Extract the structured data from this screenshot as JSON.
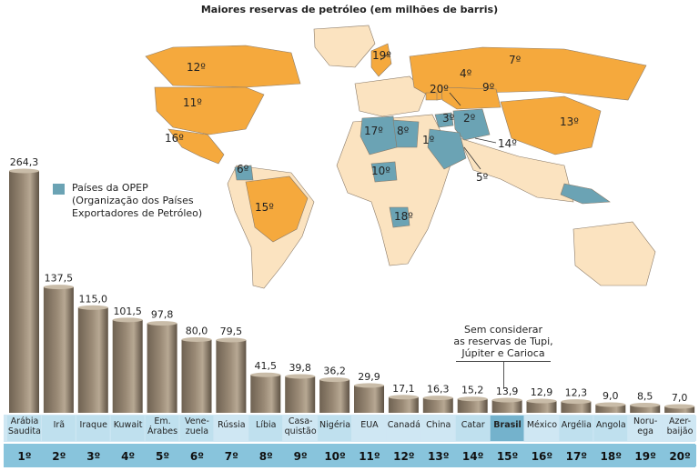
{
  "title": "Maiores reservas de petróleo (em milhões de barris)",
  "legend": {
    "label": "Países da OPEP (Organização dos Países Exportadores de Petróleo)",
    "color": "#6ba3b4"
  },
  "note": {
    "line1": "Sem considerar",
    "line2": "as reservas de Tupi,",
    "line3": "Júpiter e Carioca"
  },
  "colors": {
    "bar": "#9a8a76",
    "opep_label_bg": "#bfe0ee",
    "other_label_bg": "#cfe7f3",
    "rank_bg": "#88c4dc",
    "highlight_label_bg": "#74b2cc",
    "map_other": "#fbe3c0",
    "map_top20": "#f5a93d",
    "map_opep": "#6ba3b4"
  },
  "map_labels": [
    "12º",
    "11º",
    "16º",
    "6º",
    "15º",
    "19º",
    "7º",
    "4º",
    "20º",
    "9º",
    "3º",
    "2º",
    "13º",
    "17º",
    "8º",
    "1º",
    "14º",
    "5º",
    "10º",
    "18º"
  ],
  "chart_data": {
    "type": "bar",
    "title": "Maiores reservas de petróleo (em milhões de barris)",
    "categories": [
      [
        "Arábia",
        "Saudita"
      ],
      [
        "Irã"
      ],
      [
        "Iraque"
      ],
      [
        "Kuwait"
      ],
      [
        "Em.",
        "Árabes"
      ],
      [
        "Vene-",
        "zuela"
      ],
      [
        "Rússia"
      ],
      [
        "Líbia"
      ],
      [
        "Casa-",
        "quistão"
      ],
      [
        "Nigéria"
      ],
      [
        "EUA"
      ],
      [
        "Canadá"
      ],
      [
        "China"
      ],
      [
        "Catar"
      ],
      [
        "Brasil"
      ],
      [
        "México"
      ],
      [
        "Argélia"
      ],
      [
        "Angola"
      ],
      [
        "Noru-",
        "ega"
      ],
      [
        "Azer-",
        "baijão"
      ]
    ],
    "values": [
      264.3,
      137.5,
      115.0,
      101.5,
      97.8,
      80.0,
      79.5,
      41.5,
      39.8,
      36.2,
      29.9,
      17.1,
      16.3,
      15.2,
      13.9,
      12.9,
      12.3,
      9.0,
      8.5,
      7.0
    ],
    "value_labels": [
      "264,3",
      "137,5",
      "115,0",
      "101,5",
      "97,8",
      "80,0",
      "79,5",
      "41,5",
      "39,8",
      "36,2",
      "29,9",
      "17,1",
      "16,3",
      "15,2",
      "13,9",
      "12,9",
      "12,3",
      "9,0",
      "8,5",
      "7,0"
    ],
    "ranks": [
      "1º",
      "2º",
      "3º",
      "4º",
      "5º",
      "6º",
      "7º",
      "8º",
      "9º",
      "10º",
      "11º",
      "12º",
      "13º",
      "14º",
      "15º",
      "16º",
      "17º",
      "18º",
      "19º",
      "20º"
    ],
    "opep": [
      true,
      true,
      true,
      true,
      true,
      true,
      false,
      true,
      false,
      true,
      false,
      false,
      false,
      true,
      false,
      false,
      true,
      true,
      false,
      false
    ],
    "highlight": [
      false,
      false,
      false,
      false,
      false,
      false,
      false,
      false,
      false,
      false,
      false,
      false,
      false,
      false,
      true,
      false,
      false,
      false,
      false,
      false
    ],
    "ylim": [
      0,
      270
    ]
  }
}
